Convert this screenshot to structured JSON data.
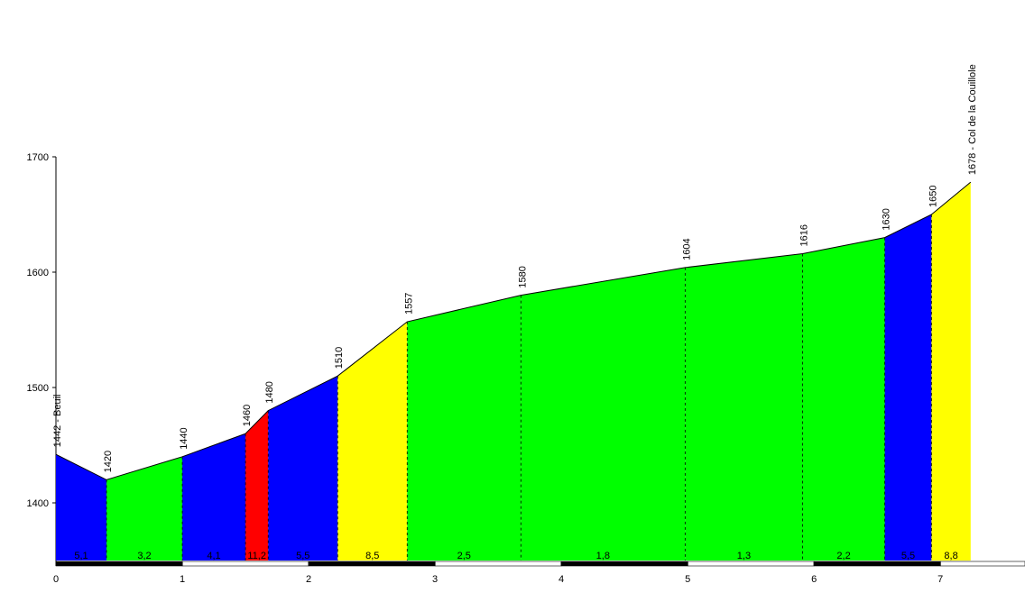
{
  "chart_data": {
    "type": "elevation-profile",
    "x": [
      0,
      0.4,
      1.0,
      1.5,
      1.68,
      2.23,
      2.78,
      3.68,
      4.98,
      5.91,
      6.56,
      6.93,
      7.24
    ],
    "values": [
      1442,
      1420,
      1440,
      1460,
      1480,
      1510,
      1557,
      1580,
      1604,
      1616,
      1630,
      1650,
      1678
    ],
    "value_labels": [
      "1442 - Beuil",
      "1420",
      "1440",
      "1460",
      "1480",
      "1510",
      "1557",
      "1580",
      "1604",
      "1616",
      "1630",
      "1650",
      "1678 - Col de la Couillole"
    ],
    "segments": {
      "values": [
        5.1,
        3.2,
        4.1,
        11.2,
        5.5,
        8.5,
        2.5,
        1.8,
        1.3,
        2.2,
        5.5,
        8.8
      ],
      "value_labels": [
        "5,1",
        "3,2",
        "4,1",
        "11,2",
        "5,5",
        "8,5",
        "2,5",
        "1,8",
        "1,3",
        "2,2",
        "5,5",
        "8,8"
      ],
      "colors": [
        "#0000ff",
        "#00ff00",
        "#0000ff",
        "#ff0000",
        "#0000ff",
        "#ffff00",
        "#00ff00",
        "#00ff00",
        "#00ff00",
        "#00ff00",
        "#0000ff",
        "#ffff00"
      ]
    },
    "xlim": [
      0,
      7.67
    ],
    "xticks": [
      0,
      1,
      2,
      3,
      4,
      5,
      6,
      7
    ],
    "ylim": [
      1350,
      1700
    ],
    "yticks": [
      1400,
      1500,
      1600,
      1700
    ]
  }
}
